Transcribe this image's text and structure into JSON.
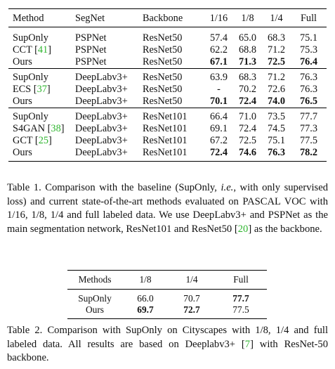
{
  "table1": {
    "headers": [
      "Method",
      "SegNet",
      "Backbone",
      "1/16",
      "1/8",
      "1/4",
      "Full"
    ],
    "rows": [
      {
        "method": "SupOnly",
        "cite": "",
        "segnet": "PSPNet",
        "backbone": "ResNet50",
        "v": [
          "57.4",
          "65.0",
          "68.3",
          "75.1"
        ],
        "bold": false
      },
      {
        "method": "CCT",
        "cite": "41",
        "segnet": "PSPNet",
        "backbone": "ResNet50",
        "v": [
          "62.2",
          "68.8",
          "71.2",
          "75.3"
        ],
        "bold": false
      },
      {
        "method": "Ours",
        "cite": "",
        "segnet": "PSPNet",
        "backbone": "ResNet50",
        "v": [
          "67.1",
          "71.3",
          "72.5",
          "76.4"
        ],
        "bold": true
      },
      {
        "method": "SupOnly",
        "cite": "",
        "segnet": "DeepLabv3+",
        "backbone": "ResNet50",
        "v": [
          "63.9",
          "68.3",
          "71.2",
          "76.3"
        ],
        "bold": false
      },
      {
        "method": "ECS",
        "cite": "37",
        "segnet": "DeepLabv3+",
        "backbone": "ResNet50",
        "v": [
          "-",
          "70.2",
          "72.6",
          "76.3"
        ],
        "bold": false
      },
      {
        "method": "Ours",
        "cite": "",
        "segnet": "DeepLabv3+",
        "backbone": "ResNet50",
        "v": [
          "70.1",
          "72.4",
          "74.0",
          "76.5"
        ],
        "bold": true
      },
      {
        "method": "SupOnly",
        "cite": "",
        "segnet": "DeepLabv3+",
        "backbone": "ResNet101",
        "v": [
          "66.4",
          "71.0",
          "73.5",
          "77.7"
        ],
        "bold": false
      },
      {
        "method": "S4GAN",
        "cite": "38",
        "segnet": "DeepLabv3+",
        "backbone": "ResNet101",
        "v": [
          "69.1",
          "72.4",
          "74.5",
          "77.3"
        ],
        "bold": false
      },
      {
        "method": "GCT",
        "cite": "25",
        "segnet": "DeepLabv3+",
        "backbone": "ResNet101",
        "v": [
          "67.2",
          "72.5",
          "75.1",
          "77.5"
        ],
        "bold": false
      },
      {
        "method": "Ours",
        "cite": "",
        "segnet": "DeepLabv3+",
        "backbone": "ResNet101",
        "v": [
          "72.4",
          "74.6",
          "76.3",
          "78.2"
        ],
        "bold": true
      }
    ],
    "caption": {
      "p1": "Table 1. Comparison with the baseline (SupOnly, ",
      "ie": "i.e.",
      "p2": ", with only supervised loss) and current state-of-the-art methods evaluated on PASCAL VOC with 1/16, 1/8, 1/4 and full labeled data.  We use DeepLabv3+ and PSPNet as the main segmentation network, ResNet101 and ResNet50 ",
      "cite": "20",
      "p3": " as the backbone."
    }
  },
  "table2": {
    "headers": [
      "Methods",
      "1/8",
      "1/4",
      "Full"
    ],
    "rows": [
      {
        "method": "SupOnly",
        "v": [
          "66.0",
          "70.7",
          "77.7"
        ],
        "bold": [
          false,
          false,
          true
        ]
      },
      {
        "method": "Ours",
        "v": [
          "69.7",
          "72.7",
          "77.5"
        ],
        "bold": [
          true,
          true,
          false
        ]
      }
    ],
    "caption": {
      "p1": "Table 2. Comparison with SupOnly on Cityscapes with 1/8, 1/4 and full labeled data. All results are based on Deeplabv3+ ",
      "cite": "7",
      "p2": " with ResNet-50 backbone."
    }
  },
  "colors": {
    "citation": "#2fb52f",
    "rule": "#000000",
    "text": "#111111"
  }
}
